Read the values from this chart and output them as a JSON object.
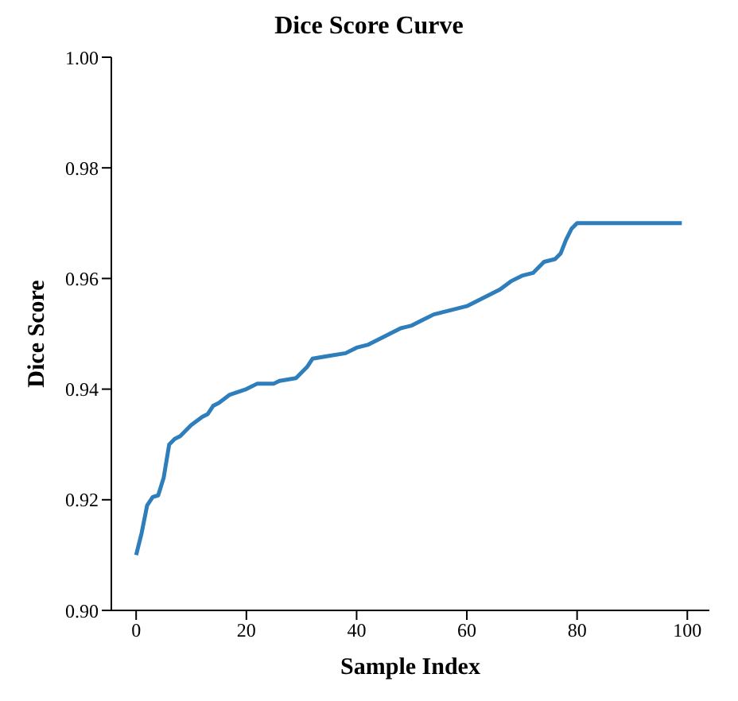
{
  "chart_data": {
    "type": "line",
    "title": "Dice Score Curve",
    "xlabel": "Sample Index",
    "ylabel": "Dice Score",
    "x": [
      0,
      1,
      2,
      3,
      4,
      5,
      6,
      7,
      8,
      10,
      12,
      13,
      14,
      15,
      17,
      20,
      22,
      25,
      26,
      29,
      30,
      31,
      32,
      35,
      38,
      40,
      42,
      44,
      46,
      48,
      50,
      52,
      54,
      56,
      58,
      60,
      62,
      64,
      66,
      68,
      70,
      72,
      73,
      74,
      76,
      77,
      78,
      79,
      80,
      99
    ],
    "series": [
      {
        "color": "#2e7ebc",
        "values": [
          0.91,
          0.914,
          0.919,
          0.9205,
          0.9208,
          0.924,
          0.93,
          0.931,
          0.9315,
          0.9335,
          0.935,
          0.9355,
          0.937,
          0.9375,
          0.939,
          0.94,
          0.941,
          0.941,
          0.9415,
          0.942,
          0.943,
          0.944,
          0.9455,
          0.946,
          0.9465,
          0.9475,
          0.948,
          0.949,
          0.95,
          0.951,
          0.9515,
          0.9525,
          0.9535,
          0.954,
          0.9545,
          0.955,
          0.956,
          0.957,
          0.958,
          0.9595,
          0.9605,
          0.961,
          0.962,
          0.963,
          0.9635,
          0.9645,
          0.967,
          0.969,
          0.97,
          0.97
        ]
      }
    ],
    "xlim": [
      -4.5,
      104
    ],
    "xticks": [
      0,
      20,
      40,
      60,
      80,
      100
    ],
    "ylim": [
      0.9,
      1.0
    ],
    "yticks": [
      {
        "value": 0.9,
        "label": "0.90"
      },
      0.92,
      0.94,
      0.96,
      0.98,
      {
        "value": 1,
        "label": "1.00"
      }
    ],
    "grid": false,
    "legend": false,
    "marker": "none",
    "line_style": "solid"
  }
}
